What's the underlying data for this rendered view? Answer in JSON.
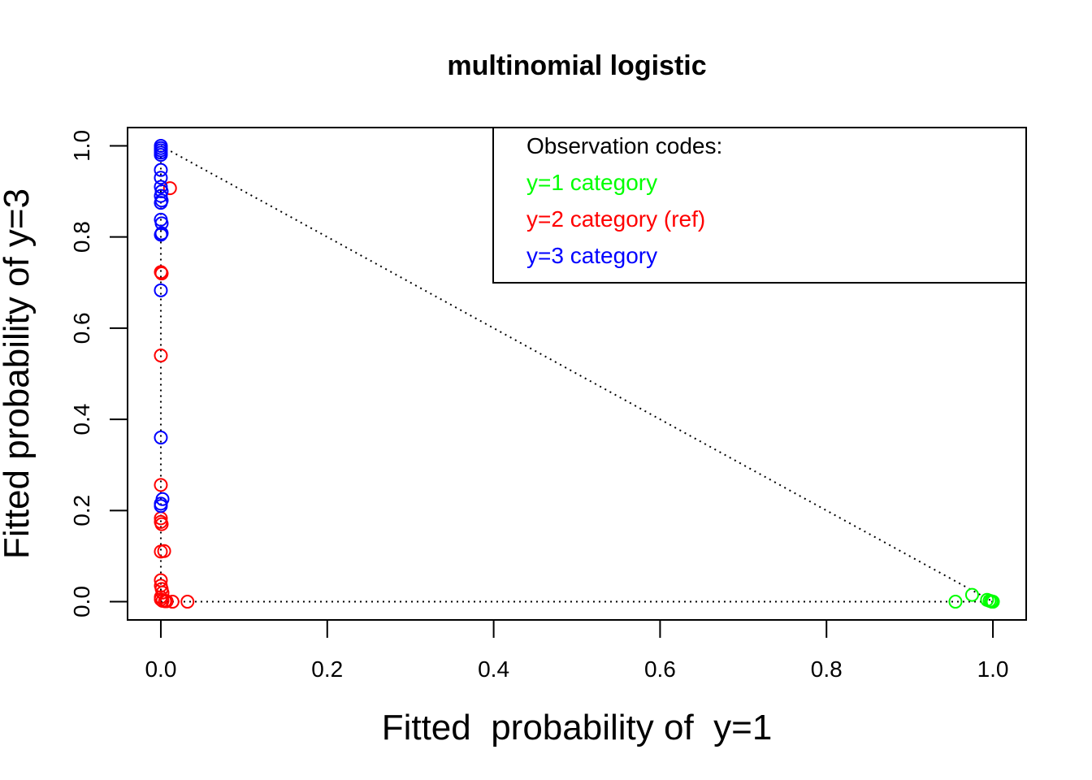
{
  "chart_data": {
    "type": "scatter",
    "title": "multinomial logistic",
    "xlabel": "Fitted  probability of  y=1",
    "ylabel": "Fitted probability of y=3",
    "xlim": [
      -0.04,
      1.04
    ],
    "ylim": [
      -0.04,
      1.04
    ],
    "xticks": [
      "0.0",
      "0.2",
      "0.4",
      "0.6",
      "0.8",
      "1.0"
    ],
    "yticks": [
      "0.0",
      "0.2",
      "0.4",
      "0.6",
      "0.8",
      "1.0"
    ],
    "grid": false,
    "legend": {
      "position": "top-right",
      "title": "Observation codes:",
      "entries": [
        {
          "label": "y=1 category",
          "color": "#00ff00"
        },
        {
          "label": "y=2 category (ref)",
          "color": "#ff0000"
        },
        {
          "label": "y=3 category",
          "color": "#0000ff"
        }
      ]
    },
    "reference_lines": {
      "style": "dotted",
      "color": "#000000",
      "segments": [
        [
          [
            0,
            1
          ],
          [
            1,
            0
          ]
        ],
        [
          [
            0,
            0
          ],
          [
            1,
            0
          ]
        ],
        [
          [
            0,
            0
          ],
          [
            0,
            1
          ]
        ]
      ]
    },
    "series": [
      {
        "name": "y=1 category",
        "color": "#00ff00",
        "x": [
          0.955,
          0.975,
          0.993,
          0.996,
          0.998,
          1.0,
          0.999
        ],
        "y": [
          0.0,
          0.015,
          0.004,
          0.002,
          0.001,
          0.0,
          0.0
        ]
      },
      {
        "name": "y=2 category (ref)",
        "color": "#ff0000",
        "x": [
          0.011,
          0.0,
          0.001,
          0.0,
          0.0,
          0.0,
          0.001,
          0.0,
          0.0,
          0.004,
          0.0,
          0.0,
          0.001,
          0.002,
          0.0,
          0.0,
          0.002,
          0.005,
          0.007,
          0.014,
          0.032
        ],
        "y": [
          0.907,
          0.723,
          0.72,
          0.54,
          0.256,
          0.183,
          0.17,
          0.175,
          0.11,
          0.111,
          0.047,
          0.035,
          0.028,
          0.02,
          0.01,
          0.005,
          0.002,
          0.001,
          0.001,
          0.0,
          0.0
        ]
      },
      {
        "name": "y=3 category",
        "color": "#0000ff",
        "x": [
          0.0,
          0.0,
          0.0,
          0.0,
          0.0,
          0.0,
          0.0,
          0.001,
          0.0,
          0.0,
          0.001,
          0.0,
          0.001,
          0.0,
          0.001,
          0.0,
          0.0,
          0.002,
          0.0,
          0.0,
          0.0
        ],
        "y": [
          1.0,
          0.995,
          0.99,
          0.985,
          0.947,
          0.93,
          0.91,
          0.9,
          0.89,
          0.875,
          0.88,
          0.838,
          0.83,
          0.805,
          0.808,
          0.683,
          0.36,
          0.225,
          0.215,
          0.21,
          0.98
        ]
      }
    ]
  }
}
